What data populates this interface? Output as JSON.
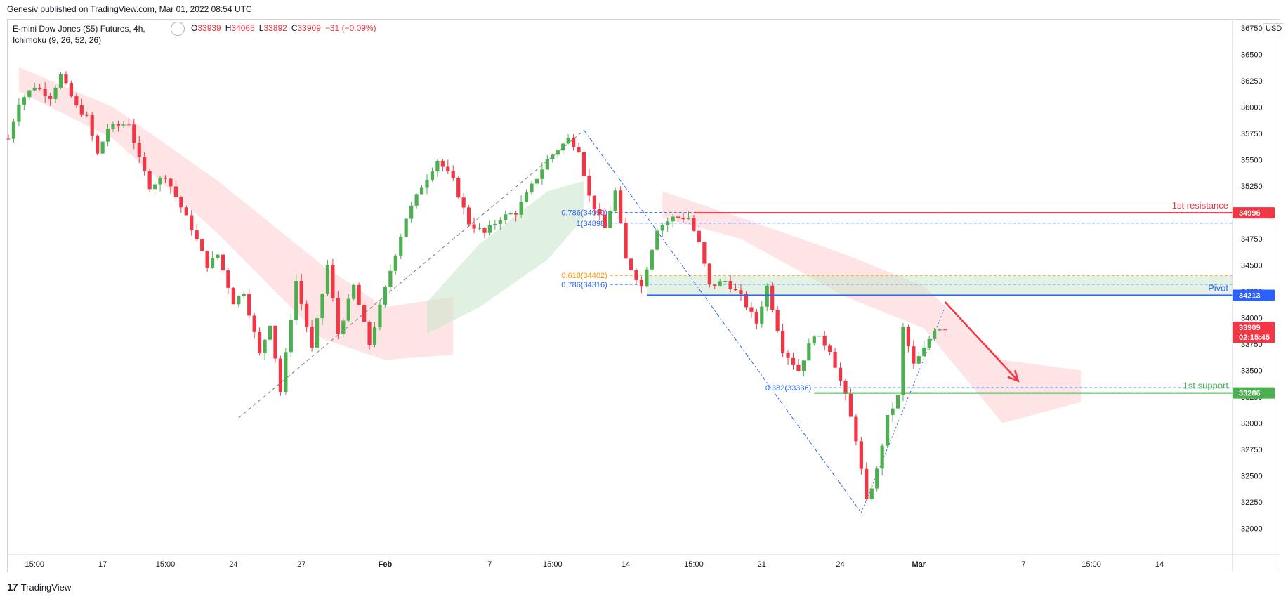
{
  "header": {
    "publish_line": "Genesiv published on TradingView.com, Mar 01, 2022 08:54 UTC"
  },
  "legend": {
    "symbol": "E-mini Dow Jones ($5) Futures, 4h,",
    "indicator": "Ichimoku (9, 26, 52, 26)",
    "ohlc": {
      "o_label": "O",
      "o": "33939",
      "h_label": "H",
      "h": "34065",
      "l_label": "L",
      "l": "33892",
      "c_label": "C",
      "c": "33909",
      "change": "−31 (−0.09%)"
    }
  },
  "currency": "USD",
  "footer": {
    "logo": "17",
    "brand": "TradingView"
  },
  "colors": {
    "up": "#26a69a",
    "down": "#f23645",
    "green_candle": "#4caf50",
    "red_candle": "#f23645",
    "resistance": "#f23645",
    "pivot": "#2962ff",
    "support": "#4caf50",
    "fib_blue": "#2962ff",
    "fib_orange": "#ff9800",
    "cloud_bull": "#c8e6c9",
    "cloud_bear": "#ffcdd2"
  },
  "chart_data": {
    "type": "candlestick",
    "instrument": "E-mini Dow Jones ($5) Futures",
    "timeframe": "4h",
    "ylim": [
      31750,
      36750
    ],
    "y_ticks": [
      32000,
      32250,
      32500,
      32750,
      33000,
      33250,
      33500,
      33750,
      34000,
      34250,
      34500,
      34750,
      35000,
      35250,
      35500,
      35750,
      36000,
      36250,
      36500,
      36750
    ],
    "x_tick_labels": [
      "15:00",
      "17",
      "15:00",
      "24",
      "27",
      "Feb",
      "7",
      "15:00",
      "14",
      "15:00",
      "21",
      "24",
      "Mar",
      "7",
      "15:00",
      "14"
    ],
    "x_tick_index": [
      5,
      18,
      30,
      43,
      56,
      72,
      92,
      104,
      118,
      131,
      144,
      159,
      174,
      194,
      207,
      220
    ],
    "candle_count": 176,
    "keypoints": [
      {
        "i": 0,
        "p": 35700
      },
      {
        "i": 2,
        "p": 36050
      },
      {
        "i": 5,
        "p": 36200
      },
      {
        "i": 8,
        "p": 36100
      },
      {
        "i": 10,
        "p": 36300
      },
      {
        "i": 13,
        "p": 36000
      },
      {
        "i": 15,
        "p": 35900
      },
      {
        "i": 17,
        "p": 35550
      },
      {
        "i": 19,
        "p": 35800
      },
      {
        "i": 23,
        "p": 35850
      },
      {
        "i": 25,
        "p": 35500
      },
      {
        "i": 27,
        "p": 35250
      },
      {
        "i": 30,
        "p": 35350
      },
      {
        "i": 33,
        "p": 35050
      },
      {
        "i": 35,
        "p": 34850
      },
      {
        "i": 38,
        "p": 34500
      },
      {
        "i": 40,
        "p": 34600
      },
      {
        "i": 43,
        "p": 34150
      },
      {
        "i": 45,
        "p": 34250
      },
      {
        "i": 48,
        "p": 33650
      },
      {
        "i": 50,
        "p": 33950
      },
      {
        "i": 52,
        "p": 33300
      },
      {
        "i": 55,
        "p": 34350
      },
      {
        "i": 58,
        "p": 33700
      },
      {
        "i": 61,
        "p": 34500
      },
      {
        "i": 63,
        "p": 33850
      },
      {
        "i": 66,
        "p": 34300
      },
      {
        "i": 69,
        "p": 33750
      },
      {
        "i": 73,
        "p": 34450
      },
      {
        "i": 76,
        "p": 34950
      },
      {
        "i": 79,
        "p": 35250
      },
      {
        "i": 82,
        "p": 35500
      },
      {
        "i": 85,
        "p": 35300
      },
      {
        "i": 88,
        "p": 34900
      },
      {
        "i": 91,
        "p": 34800
      },
      {
        "i": 94,
        "p": 34950
      },
      {
        "i": 97,
        "p": 35000
      },
      {
        "i": 100,
        "p": 35250
      },
      {
        "i": 103,
        "p": 35500
      },
      {
        "i": 107,
        "p": 35700
      },
      {
        "i": 109,
        "p": 35600
      },
      {
        "i": 111,
        "p": 35150
      },
      {
        "i": 114,
        "p": 34850
      },
      {
        "i": 116,
        "p": 35200
      },
      {
        "i": 118,
        "p": 34550
      },
      {
        "i": 121,
        "p": 34300
      },
      {
        "i": 124,
        "p": 34850
      },
      {
        "i": 127,
        "p": 34950
      },
      {
        "i": 130,
        "p": 34950
      },
      {
        "i": 132,
        "p": 34700
      },
      {
        "i": 134,
        "p": 34300
      },
      {
        "i": 137,
        "p": 34350
      },
      {
        "i": 140,
        "p": 34200
      },
      {
        "i": 143,
        "p": 33950
      },
      {
        "i": 145,
        "p": 34300
      },
      {
        "i": 148,
        "p": 33700
      },
      {
        "i": 151,
        "p": 33500
      },
      {
        "i": 154,
        "p": 33850
      },
      {
        "i": 157,
        "p": 33700
      },
      {
        "i": 160,
        "p": 33250
      },
      {
        "i": 162,
        "p": 32850
      },
      {
        "i": 164,
        "p": 32250
      },
      {
        "i": 166,
        "p": 32550
      },
      {
        "i": 168,
        "p": 33050
      },
      {
        "i": 170,
        "p": 33250
      },
      {
        "i": 171,
        "p": 33900
      },
      {
        "i": 173,
        "p": 33550
      },
      {
        "i": 175,
        "p": 33700
      },
      {
        "i": 177,
        "p": 33900
      },
      {
        "i": 179,
        "p": 33909
      }
    ],
    "ichimoku_cloud": {
      "bear_upper": [
        {
          "i": 2,
          "p": 36380
        },
        {
          "i": 20,
          "p": 36000
        },
        {
          "i": 40,
          "p": 35300
        },
        {
          "i": 60,
          "p": 34500
        },
        {
          "i": 72,
          "p": 34100
        },
        {
          "i": 85,
          "p": 34200
        }
      ],
      "bear_lower": [
        {
          "i": 2,
          "p": 36150
        },
        {
          "i": 20,
          "p": 35700
        },
        {
          "i": 40,
          "p": 34800
        },
        {
          "i": 60,
          "p": 33800
        },
        {
          "i": 72,
          "p": 33600
        },
        {
          "i": 85,
          "p": 33650
        }
      ],
      "bull_upper": [
        {
          "i": 80,
          "p": 34150
        },
        {
          "i": 90,
          "p": 34700
        },
        {
          "i": 103,
          "p": 35200
        },
        {
          "i": 110,
          "p": 35300
        }
      ],
      "bull_lower": [
        {
          "i": 80,
          "p": 33850
        },
        {
          "i": 90,
          "p": 34100
        },
        {
          "i": 103,
          "p": 34550
        },
        {
          "i": 110,
          "p": 34950
        }
      ],
      "bear2_upper": [
        {
          "i": 125,
          "p": 35200
        },
        {
          "i": 140,
          "p": 34950
        },
        {
          "i": 160,
          "p": 34600
        },
        {
          "i": 175,
          "p": 34300
        },
        {
          "i": 190,
          "p": 33600
        },
        {
          "i": 205,
          "p": 33500
        }
      ],
      "bear2_lower": [
        {
          "i": 125,
          "p": 34950
        },
        {
          "i": 140,
          "p": 34750
        },
        {
          "i": 160,
          "p": 34200
        },
        {
          "i": 175,
          "p": 33900
        },
        {
          "i": 190,
          "p": 33000
        },
        {
          "i": 205,
          "p": 33200
        }
      ]
    },
    "levels": [
      {
        "name": "1st resistance",
        "price": 34996,
        "color": "#f23645",
        "from_i": 131
      },
      {
        "name": "Pivot",
        "price": 34213,
        "color": "#2962ff",
        "from_i": 122
      },
      {
        "name": "1st support",
        "price": 33286,
        "color": "#4caf50",
        "from_i": 154
      }
    ],
    "fib_labels": [
      {
        "text": "0.786(34999)",
        "price": 34999,
        "color": "#2962ff",
        "from_i": 115
      },
      {
        "text": "1(34898)",
        "price": 34898,
        "color": "#2962ff",
        "from_i": 115
      },
      {
        "text": "0.618(34402)",
        "price": 34402,
        "color": "#ff9800",
        "from_i": 115
      },
      {
        "text": "0.786(34316)",
        "price": 34316,
        "color": "#2962ff",
        "from_i": 115
      },
      {
        "text": "0.382(33336)",
        "price": 33336,
        "color": "#2962ff",
        "from_i": 154
      }
    ],
    "price_tags": [
      {
        "label": "34996",
        "price": 34996,
        "color": "#f23645"
      },
      {
        "label": "34213",
        "price": 34213,
        "color": "#2962ff"
      },
      {
        "label": "33909",
        "price": 33909,
        "color": "#f23645",
        "sub": "02:15:45"
      },
      {
        "label": "33286",
        "price": 33286,
        "color": "#4caf50"
      }
    ],
    "trendlines": [
      {
        "from": {
          "i": 44,
          "p": 33050
        },
        "to": {
          "i": 110,
          "p": 35780
        },
        "style": "dashed",
        "color": "#787b86"
      },
      {
        "from": {
          "i": 110,
          "p": 35780
        },
        "to": {
          "i": 163,
          "p": 32150
        },
        "style": "dashdot",
        "color": "#2962ff"
      },
      {
        "from": {
          "i": 163,
          "p": 32150
        },
        "to": {
          "i": 179,
          "p": 34100
        },
        "style": "dotted",
        "color": "#2962ff"
      }
    ],
    "projection_arrow": {
      "from": {
        "i": 179,
        "p": 34150
      },
      "to": {
        "i": 193,
        "p": 33400
      },
      "color": "#f23645"
    }
  }
}
